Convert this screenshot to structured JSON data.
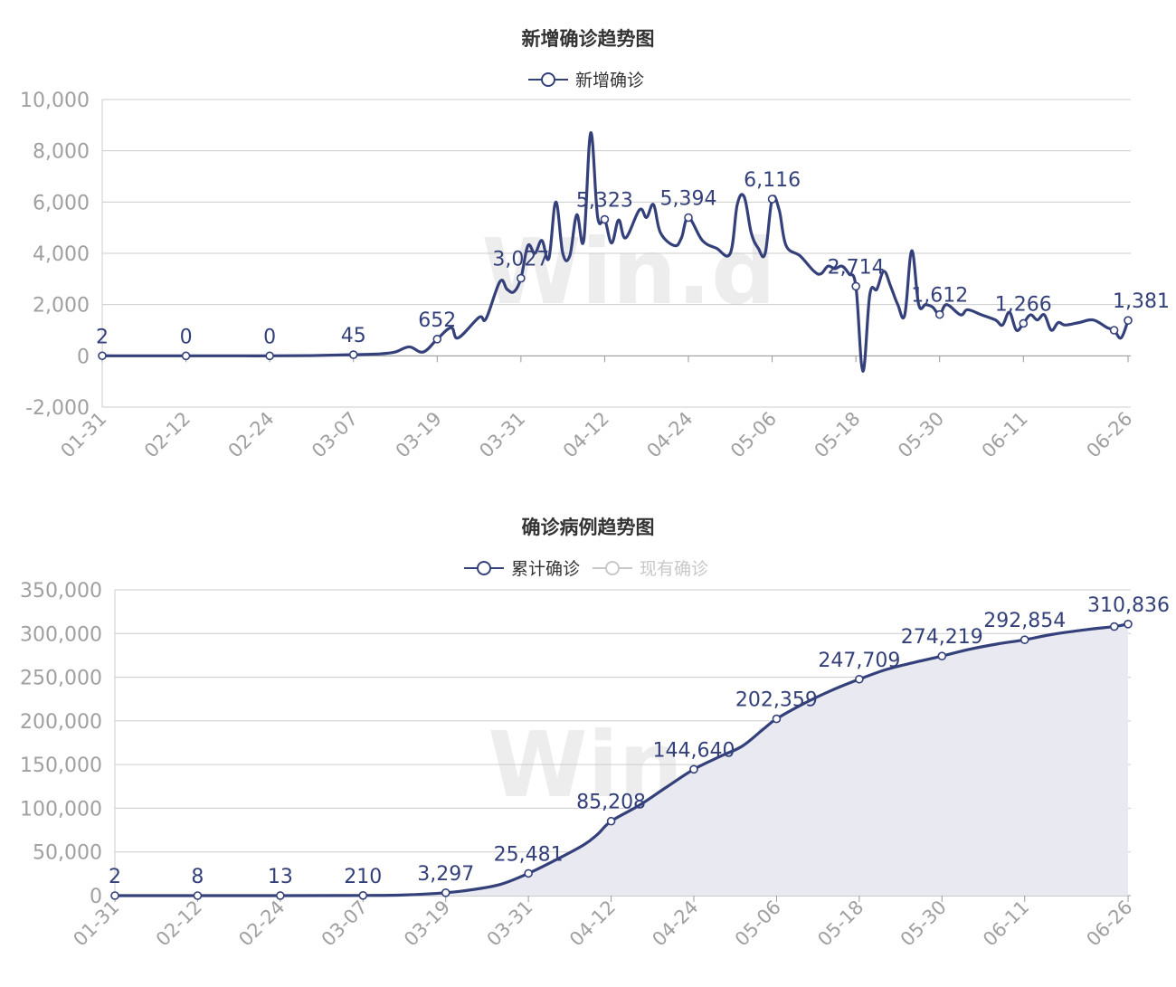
{
  "colors": {
    "primary": "#34407a",
    "muted": "#c8c8c8",
    "grid": "#cccccc",
    "axis_text": "#a0a0a0",
    "title": "#333333",
    "area_fill": "#e9eaf1",
    "watermark": "#ededed"
  },
  "watermark": "Win.d",
  "chart_data": [
    {
      "type": "line",
      "title": "新增确诊趋势图",
      "legend": [
        {
          "name": "新增确诊",
          "active": true
        }
      ],
      "legend_position": "top-center",
      "grid": true,
      "ylim": [
        -2000,
        10000
      ],
      "yticks": [
        -2000,
        0,
        2000,
        4000,
        6000,
        8000,
        10000
      ],
      "ytick_labels": [
        "-2,000",
        "0",
        "2,000",
        "4,000",
        "6,000",
        "8,000",
        "10,000"
      ],
      "x_domain": [
        "01-31",
        "06-26"
      ],
      "xticks": [
        "01-31",
        "02-12",
        "02-24",
        "03-07",
        "03-19",
        "03-31",
        "04-12",
        "04-24",
        "05-06",
        "05-18",
        "05-30",
        "06-11",
        "06-26"
      ],
      "series": [
        {
          "name": "新增确诊",
          "points": [
            [
              "01-31",
              2
            ],
            [
              "02-05",
              0
            ],
            [
              "02-12",
              0
            ],
            [
              "02-20",
              0
            ],
            [
              "02-24",
              0
            ],
            [
              "03-01",
              10
            ],
            [
              "03-07",
              45
            ],
            [
              "03-11",
              80
            ],
            [
              "03-13",
              150
            ],
            [
              "03-15",
              350
            ],
            [
              "03-17",
              150
            ],
            [
              "03-19",
              652
            ],
            [
              "03-21",
              1100
            ],
            [
              "03-22",
              700
            ],
            [
              "03-25",
              1500
            ],
            [
              "03-26",
              1450
            ],
            [
              "03-28",
              2900
            ],
            [
              "03-29",
              2600
            ],
            [
              "03-30",
              2500
            ],
            [
              "03-31",
              3027
            ],
            [
              "04-01",
              4300
            ],
            [
              "04-02",
              4000
            ],
            [
              "04-03",
              4500
            ],
            [
              "04-04",
              3800
            ],
            [
              "04-05",
              6000
            ],
            [
              "04-06",
              4000
            ],
            [
              "04-07",
              3900
            ],
            [
              "04-08",
              5500
            ],
            [
              "04-09",
              4500
            ],
            [
              "04-10",
              8700
            ],
            [
              "04-11",
              5400
            ],
            [
              "04-12",
              5323
            ],
            [
              "04-13",
              4400
            ],
            [
              "04-14",
              5300
            ],
            [
              "04-15",
              4600
            ],
            [
              "04-17",
              5700
            ],
            [
              "04-18",
              5400
            ],
            [
              "04-19",
              5900
            ],
            [
              "04-20",
              4800
            ],
            [
              "04-22",
              4300
            ],
            [
              "04-23",
              4600
            ],
            [
              "04-24",
              5394
            ],
            [
              "04-26",
              4500
            ],
            [
              "04-28",
              4200
            ],
            [
              "04-30",
              4000
            ],
            [
              "05-01",
              5900
            ],
            [
              "05-02",
              6200
            ],
            [
              "05-03",
              4800
            ],
            [
              "05-04",
              4200
            ],
            [
              "05-05",
              4000
            ],
            [
              "05-06",
              6116
            ],
            [
              "05-07",
              5700
            ],
            [
              "05-08",
              4300
            ],
            [
              "05-10",
              3900
            ],
            [
              "05-12",
              3300
            ],
            [
              "05-13",
              3200
            ],
            [
              "05-14",
              3500
            ],
            [
              "05-15",
              3400
            ],
            [
              "05-16",
              3500
            ],
            [
              "05-17",
              3200
            ],
            [
              "05-18",
              2714
            ],
            [
              "05-19",
              -600
            ],
            [
              "05-20",
              2400
            ],
            [
              "05-21",
              2600
            ],
            [
              "05-22",
              3300
            ],
            [
              "05-23",
              2700
            ],
            [
              "05-24",
              2000
            ],
            [
              "05-25",
              1600
            ],
            [
              "05-26",
              4100
            ],
            [
              "05-27",
              2000
            ],
            [
              "05-28",
              2000
            ],
            [
              "05-29",
              1900
            ],
            [
              "05-30",
              1612
            ],
            [
              "05-31",
              2000
            ],
            [
              "06-02",
              1600
            ],
            [
              "06-03",
              1800
            ],
            [
              "06-05",
              1600
            ],
            [
              "06-07",
              1400
            ],
            [
              "06-08",
              1200
            ],
            [
              "06-09",
              1700
            ],
            [
              "06-10",
              1000
            ],
            [
              "06-11",
              1266
            ],
            [
              "06-12",
              1600
            ],
            [
              "06-13",
              1400
            ],
            [
              "06-14",
              1600
            ],
            [
              "06-15",
              1000
            ],
            [
              "06-16",
              1300
            ],
            [
              "06-17",
              1200
            ],
            [
              "06-19",
              1300
            ],
            [
              "06-21",
              1400
            ],
            [
              "06-23",
              1100
            ],
            [
              "06-24",
              1000
            ],
            [
              "06-25",
              700
            ],
            [
              "06-26",
              1381
            ]
          ],
          "markers": [
            [
              "01-31",
              2
            ],
            [
              "02-12",
              0
            ],
            [
              "02-24",
              0
            ],
            [
              "03-07",
              45
            ],
            [
              "03-19",
              652
            ],
            [
              "03-31",
              3027
            ],
            [
              "04-12",
              5323
            ],
            [
              "04-24",
              5394
            ],
            [
              "05-06",
              6116
            ],
            [
              "05-18",
              2714
            ],
            [
              "05-30",
              1612
            ],
            [
              "06-11",
              1266
            ],
            [
              "06-24",
              1000
            ],
            [
              "06-26",
              1381
            ]
          ],
          "labels": [
            [
              "01-31",
              2,
              "2"
            ],
            [
              "02-12",
              0,
              "0"
            ],
            [
              "02-24",
              0,
              "0"
            ],
            [
              "03-07",
              45,
              "45"
            ],
            [
              "03-19",
              652,
              "652"
            ],
            [
              "03-31",
              3027,
              "3,027"
            ],
            [
              "04-12",
              5323,
              "5,323"
            ],
            [
              "04-24",
              5394,
              "5,394"
            ],
            [
              "05-06",
              6116,
              "6,116"
            ],
            [
              "05-18",
              2714,
              "2,714"
            ],
            [
              "05-30",
              1612,
              "1,612"
            ],
            [
              "06-11",
              1266,
              "1,266"
            ],
            [
              "06-26",
              1381,
              "1,381"
            ]
          ]
        }
      ]
    },
    {
      "type": "area",
      "title": "确诊病例趋势图",
      "legend": [
        {
          "name": "累计确诊",
          "active": true
        },
        {
          "name": "现有确诊",
          "active": false
        }
      ],
      "legend_position": "top-center",
      "grid": true,
      "ylim": [
        0,
        350000
      ],
      "yticks": [
        0,
        50000,
        100000,
        150000,
        200000,
        250000,
        300000,
        350000
      ],
      "ytick_labels": [
        "0",
        "50,000",
        "100,000",
        "150,000",
        "200,000",
        "250,000",
        "300,000",
        "350,000"
      ],
      "x_domain": [
        "01-31",
        "06-26"
      ],
      "xticks": [
        "01-31",
        "02-12",
        "02-24",
        "03-07",
        "03-19",
        "03-31",
        "04-12",
        "04-24",
        "05-06",
        "05-18",
        "05-30",
        "06-11",
        "06-26"
      ],
      "series": [
        {
          "name": "累计确诊",
          "points": [
            [
              "01-31",
              2
            ],
            [
              "02-12",
              8
            ],
            [
              "02-24",
              13
            ],
            [
              "03-07",
              210
            ],
            [
              "03-13",
              800
            ],
            [
              "03-19",
              3297
            ],
            [
              "03-23",
              7000
            ],
            [
              "03-27",
              13000
            ],
            [
              "03-31",
              25481
            ],
            [
              "04-04",
              41000
            ],
            [
              "04-08",
              58000
            ],
            [
              "04-10",
              70000
            ],
            [
              "04-12",
              85208
            ],
            [
              "04-16",
              103000
            ],
            [
              "04-20",
              124000
            ],
            [
              "04-24",
              144640
            ],
            [
              "04-28",
              160000
            ],
            [
              "05-01",
              171000
            ],
            [
              "05-04",
              190000
            ],
            [
              "05-06",
              202359
            ],
            [
              "05-10",
              220000
            ],
            [
              "05-14",
              235000
            ],
            [
              "05-18",
              247709
            ],
            [
              "05-22",
              259000
            ],
            [
              "05-26",
              267000
            ],
            [
              "05-30",
              274219
            ],
            [
              "06-03",
              282000
            ],
            [
              "06-07",
              288000
            ],
            [
              "06-11",
              292854
            ],
            [
              "06-15",
              299000
            ],
            [
              "06-20",
              304500
            ],
            [
              "06-24",
              308000
            ],
            [
              "06-26",
              310836
            ]
          ],
          "markers": [
            [
              "01-31",
              2
            ],
            [
              "02-12",
              8
            ],
            [
              "02-24",
              13
            ],
            [
              "03-07",
              210
            ],
            [
              "03-19",
              3297
            ],
            [
              "03-31",
              25481
            ],
            [
              "04-12",
              85208
            ],
            [
              "04-24",
              144640
            ],
            [
              "05-06",
              202359
            ],
            [
              "05-18",
              247709
            ],
            [
              "05-30",
              274219
            ],
            [
              "06-11",
              292854
            ],
            [
              "06-24",
              308000
            ],
            [
              "06-26",
              310836
            ]
          ],
          "labels": [
            [
              "01-31",
              2,
              "2"
            ],
            [
              "02-12",
              8,
              "8"
            ],
            [
              "02-24",
              13,
              "13"
            ],
            [
              "03-07",
              210,
              "210"
            ],
            [
              "03-19",
              3297,
              "3,297"
            ],
            [
              "03-31",
              25481,
              "25,481"
            ],
            [
              "04-12",
              85208,
              "85,208"
            ],
            [
              "04-24",
              144640,
              "144,640"
            ],
            [
              "05-06",
              202359,
              "202,359"
            ],
            [
              "05-18",
              247709,
              "247,709"
            ],
            [
              "05-30",
              274219,
              "274,219"
            ],
            [
              "06-11",
              292854,
              "292,854"
            ],
            [
              "06-26",
              310836,
              "310,836"
            ]
          ]
        },
        {
          "name": "现有确诊",
          "hidden": true,
          "points": []
        }
      ]
    }
  ]
}
